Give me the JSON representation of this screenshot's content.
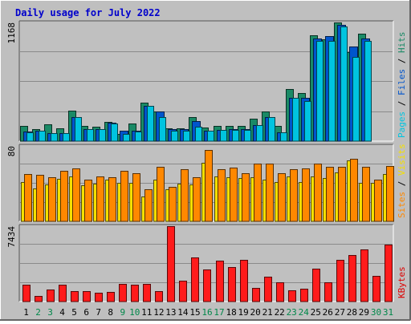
{
  "chart_data": [
    {
      "type": "bar",
      "panel": "top",
      "title": "Daily usage for July 2022",
      "ymax_label": "1168",
      "ylim": [
        0,
        1168
      ],
      "grid": true,
      "right_labels": [
        {
          "text": "Pages",
          "color": "#00c4e0"
        },
        {
          "text": " / ",
          "color": "#000000"
        },
        {
          "text": "Files",
          "color": "#0055cc"
        },
        {
          "text": " / ",
          "color": "#000000"
        },
        {
          "text": "Hits",
          "color": "#1a8a66"
        }
      ],
      "series": [
        {
          "name": "Hits",
          "color": "#1a8a66",
          "values": [
            151,
            115,
            166,
            123,
            299,
            151,
            144,
            192,
            74,
            174,
            382,
            291,
            130,
            130,
            233,
            133,
            146,
            150,
            151,
            218,
            295,
            151,
            512,
            472,
            1041,
            1005,
            1168,
            878,
            1060,
            0,
            0
          ]
        },
        {
          "name": "Files",
          "color": "#0055cc",
          "values": [
            92,
            104,
            80,
            80,
            240,
            120,
            120,
            180,
            100,
            100,
            350,
            290,
            115,
            115,
            200,
            100,
            111,
            115,
            115,
            160,
            240,
            90,
            430,
            430,
            1007,
            1035,
            1145,
            928,
            1007,
            0,
            0
          ]
        },
        {
          "name": "Pages",
          "color": "#00c4e0",
          "values": [
            90,
            102,
            78,
            78,
            236,
            118,
            118,
            176,
            70,
            96,
            346,
            240,
            99,
            99,
            144,
            99,
            109,
            113,
            113,
            156,
            236,
            86,
            424,
            394,
            990,
            985,
            1128,
            830,
            990,
            0,
            0
          ]
        }
      ]
    },
    {
      "type": "bar",
      "panel": "middle",
      "ymax_label": "80",
      "ylim": [
        0,
        80
      ],
      "grid": true,
      "right_labels": [
        {
          "text": "Sites",
          "color": "#ff8800"
        },
        {
          "text": " / ",
          "color": "#000000"
        },
        {
          "text": "Visits",
          "color": "#f4e000"
        }
      ],
      "series": [
        {
          "name": "Visits",
          "color": "#f4e000",
          "values": [
            42,
            35,
            39,
            45,
            48,
            38,
            40,
            44,
            41,
            41,
            26,
            44,
            34,
            40,
            39,
            62,
            48,
            47,
            46,
            47,
            44,
            42,
            48,
            42,
            48,
            46,
            52,
            65,
            41,
            41,
            50
          ]
        },
        {
          "name": "Sites",
          "color": "#ff8800",
          "values": [
            50,
            49,
            47,
            54,
            56,
            44,
            48,
            47,
            54,
            51,
            34,
            58,
            37,
            55,
            47,
            76,
            55,
            57,
            51,
            61,
            61,
            51,
            55,
            56,
            61,
            58,
            58,
            66,
            58,
            44,
            59
          ]
        }
      ]
    },
    {
      "type": "bar",
      "panel": "bottom",
      "ymax_label": "7434",
      "ylim": [
        0,
        7434
      ],
      "grid": true,
      "right_labels": [
        {
          "text": "KBytes",
          "color": "#dd0000"
        }
      ],
      "series": [
        {
          "name": "KBytes",
          "color": "#ff1b1b",
          "values": [
            1631,
            541,
            1180,
            1641,
            1001,
            1060,
            842,
            917,
            1744,
            1665,
            1749,
            1049,
            7434,
            2056,
            4350,
            3193,
            4032,
            3439,
            4120,
            1377,
            2425,
            1935,
            1080,
            1282,
            3236,
            1935,
            4100,
            4574,
            5179,
            2513,
            5632
          ]
        }
      ]
    }
  ],
  "x_axis": {
    "days": [
      {
        "label": "1",
        "weekend": false
      },
      {
        "label": "2",
        "weekend": true
      },
      {
        "label": "3",
        "weekend": true
      },
      {
        "label": "4",
        "weekend": false
      },
      {
        "label": "5",
        "weekend": false
      },
      {
        "label": "6",
        "weekend": false
      },
      {
        "label": "7",
        "weekend": false
      },
      {
        "label": "8",
        "weekend": false
      },
      {
        "label": "9",
        "weekend": true
      },
      {
        "label": "10",
        "weekend": true
      },
      {
        "label": "11",
        "weekend": false
      },
      {
        "label": "12",
        "weekend": false
      },
      {
        "label": "13",
        "weekend": false
      },
      {
        "label": "14",
        "weekend": false
      },
      {
        "label": "15",
        "weekend": false
      },
      {
        "label": "16",
        "weekend": true
      },
      {
        "label": "17",
        "weekend": true
      },
      {
        "label": "18",
        "weekend": false
      },
      {
        "label": "19",
        "weekend": false
      },
      {
        "label": "20",
        "weekend": false
      },
      {
        "label": "21",
        "weekend": false
      },
      {
        "label": "22",
        "weekend": false
      },
      {
        "label": "23",
        "weekend": true
      },
      {
        "label": "24",
        "weekend": true
      },
      {
        "label": "25",
        "weekend": false
      },
      {
        "label": "26",
        "weekend": false
      },
      {
        "label": "27",
        "weekend": false
      },
      {
        "label": "28",
        "weekend": false
      },
      {
        "label": "29",
        "weekend": false
      },
      {
        "label": "30",
        "weekend": true
      },
      {
        "label": "31",
        "weekend": true
      }
    ],
    "weekday_color": "#000000",
    "weekend_color": "#00884a"
  },
  "colors": {
    "background": "#bfbfbf",
    "plot_background": "#c0c0c0",
    "title": "#0000cc",
    "grid": "#8a8a8a"
  }
}
